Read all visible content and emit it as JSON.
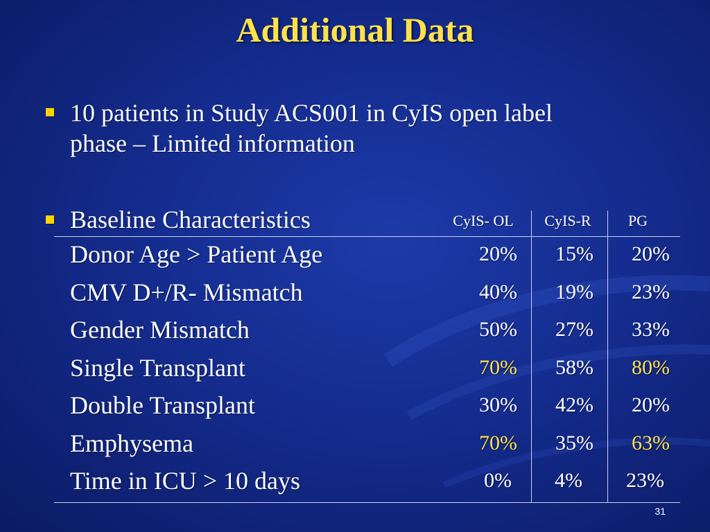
{
  "title": "Additional Data",
  "bullets": [
    {
      "line1": "10 patients in Study ACS001 in CyIS open label",
      "line2": "phase – Limited information"
    },
    {
      "line1": "Baseline Characteristics"
    }
  ],
  "table": {
    "columns": [
      "CyIS- OL",
      "CyIS-R",
      "PG"
    ],
    "rows": [
      {
        "label": "Donor Age > Patient Age",
        "values": [
          "20%",
          "15%",
          "20%"
        ]
      },
      {
        "label": "CMV D+/R- Mismatch",
        "values": [
          "40%",
          "19%",
          "23%"
        ]
      },
      {
        "label": "Gender Mismatch",
        "values": [
          "50%",
          "27%",
          "33%"
        ]
      },
      {
        "label": "Single Transplant",
        "values": [
          "70%",
          "58%",
          "80%"
        ]
      },
      {
        "label": "Double Transplant",
        "values": [
          "30%",
          "42%",
          "20%"
        ]
      },
      {
        "label": "Emphysema",
        "values": [
          "70%",
          "35%",
          "63%"
        ]
      },
      {
        "label": "Time in ICU > 10 days",
        "values": [
          "0%",
          "4%",
          "23%"
        ]
      }
    ]
  },
  "slide_number": "31",
  "colors": {
    "title": "#ffe24a",
    "bullet": "#ffd400",
    "highlight": "#ffe24a",
    "background": "#142c8e"
  }
}
